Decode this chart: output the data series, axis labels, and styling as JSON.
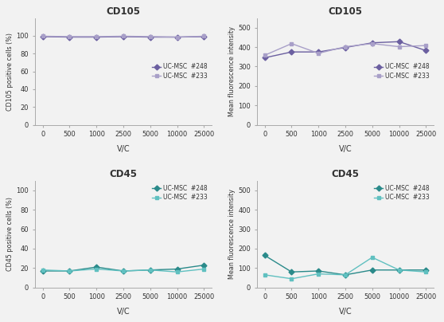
{
  "x": [
    0,
    500,
    1000,
    2500,
    5000,
    10000,
    25000
  ],
  "x_labels": [
    "0",
    "500",
    "1000",
    "2500",
    "5000",
    "10000",
    "25000"
  ],
  "cd105_pct_248": [
    99.0,
    98.5,
    98.5,
    99.0,
    98.5,
    98.5,
    99.0
  ],
  "cd105_pct_233": [
    99.5,
    99.0,
    99.0,
    99.5,
    99.0,
    98.5,
    99.5
  ],
  "cd105_mfi_248": [
    345,
    375,
    375,
    398,
    422,
    428,
    382
  ],
  "cd105_mfi_233": [
    358,
    418,
    368,
    402,
    418,
    402,
    408
  ],
  "cd45_pct_248": [
    17,
    17,
    21,
    17,
    18,
    19,
    23
  ],
  "cd45_pct_233": [
    18,
    17,
    19,
    17,
    18,
    16,
    19
  ],
  "cd45_mfi_248": [
    165,
    80,
    85,
    65,
    90,
    90,
    90
  ],
  "cd45_mfi_233": [
    65,
    45,
    70,
    65,
    155,
    90,
    80
  ],
  "color_248_purple": "#6B5FA0",
  "color_233_purple": "#A89FC8",
  "color_248_teal": "#2A8A8A",
  "color_233_teal": "#60C0C0",
  "xlabel": "V/C",
  "cd105_title": "CD105",
  "cd45_title": "CD45",
  "ylabel_pct_cd105": "CD105 positive cells (%)",
  "ylabel_pct_cd45": "CD45 positive cells (%)",
  "ylabel_mfi": "Mean fluorescence intensity",
  "legend_248": "UC-MSC  #248",
  "legend_233": "UC-MSC  #233",
  "bg_color": "#f2f2f2"
}
